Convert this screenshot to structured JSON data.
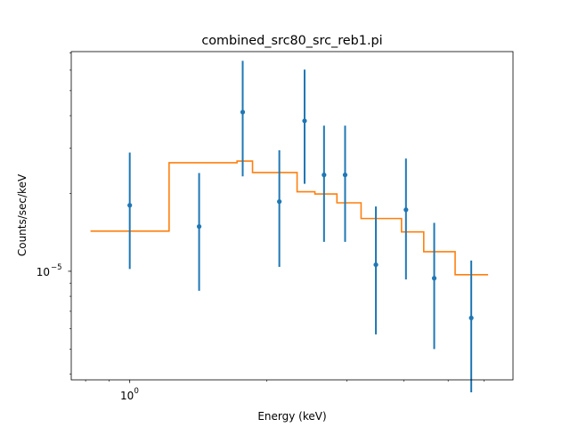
{
  "chart_data": {
    "type": "scatter",
    "title": "combined_src80_src_reb1.pi",
    "xlabel": "Energy (keV)",
    "ylabel": "Counts/sec/keV",
    "xscale": "log",
    "yscale": "log",
    "xlim": [
      0.744,
      6.94
    ],
    "ylim": [
      3.8e-06,
      7.08e-05
    ],
    "grid": false,
    "x_tick_labels": [
      {
        "value": 1.0,
        "label": "10",
        "sup": "0"
      }
    ],
    "y_tick_labels": [
      {
        "value": 1e-05,
        "label": "10",
        "sup": "−5"
      }
    ],
    "series": [
      {
        "style": "errorbar",
        "color": "#1f77b4",
        "points": [
          {
            "x": 1.0,
            "y": 1.8e-05,
            "ylo": 1.02e-05,
            "yhi": 2.88e-05
          },
          {
            "x": 1.42,
            "y": 1.49e-05,
            "ylo": 8.4e-06,
            "yhi": 2.4e-05
          },
          {
            "x": 1.77,
            "y": 4.13e-05,
            "ylo": 2.33e-05,
            "yhi": 6.52e-05
          },
          {
            "x": 2.13,
            "y": 1.86e-05,
            "ylo": 1.04e-05,
            "yhi": 2.94e-05
          },
          {
            "x": 2.42,
            "y": 3.82e-05,
            "ylo": 2.18e-05,
            "yhi": 6.03e-05
          },
          {
            "x": 2.67,
            "y": 2.36e-05,
            "ylo": 1.3e-05,
            "yhi": 3.66e-05
          },
          {
            "x": 2.97,
            "y": 2.36e-05,
            "ylo": 1.3e-05,
            "yhi": 3.66e-05
          },
          {
            "x": 3.47,
            "y": 1.06e-05,
            "ylo": 5.7e-06,
            "yhi": 1.78e-05
          },
          {
            "x": 4.04,
            "y": 1.73e-05,
            "ylo": 9.3e-06,
            "yhi": 2.73e-05
          },
          {
            "x": 4.66,
            "y": 9.4e-06,
            "ylo": 5e-06,
            "yhi": 1.54e-05
          },
          {
            "x": 5.62,
            "y": 6.6e-06,
            "ylo": 3.4e-06,
            "yhi": 1.1e-05
          }
        ]
      },
      {
        "style": "step",
        "color": "#ff7f0e",
        "steps": [
          {
            "x0": 0.82,
            "x1": 1.22,
            "y": 1.43e-05
          },
          {
            "x0": 1.22,
            "x1": 1.72,
            "y": 2.63e-05
          },
          {
            "x0": 1.72,
            "x1": 1.86,
            "y": 2.67e-05
          },
          {
            "x0": 1.86,
            "x1": 2.33,
            "y": 2.41e-05
          },
          {
            "x0": 2.33,
            "x1": 2.55,
            "y": 2.03e-05
          },
          {
            "x0": 2.55,
            "x1": 2.85,
            "y": 1.99e-05
          },
          {
            "x0": 2.85,
            "x1": 3.22,
            "y": 1.84e-05
          },
          {
            "x0": 3.22,
            "x1": 3.95,
            "y": 1.6e-05
          },
          {
            "x0": 3.95,
            "x1": 4.42,
            "y": 1.42e-05
          },
          {
            "x0": 4.42,
            "x1": 5.18,
            "y": 1.19e-05
          },
          {
            "x0": 5.18,
            "x1": 6.12,
            "y": 9.7e-06
          }
        ]
      }
    ]
  }
}
